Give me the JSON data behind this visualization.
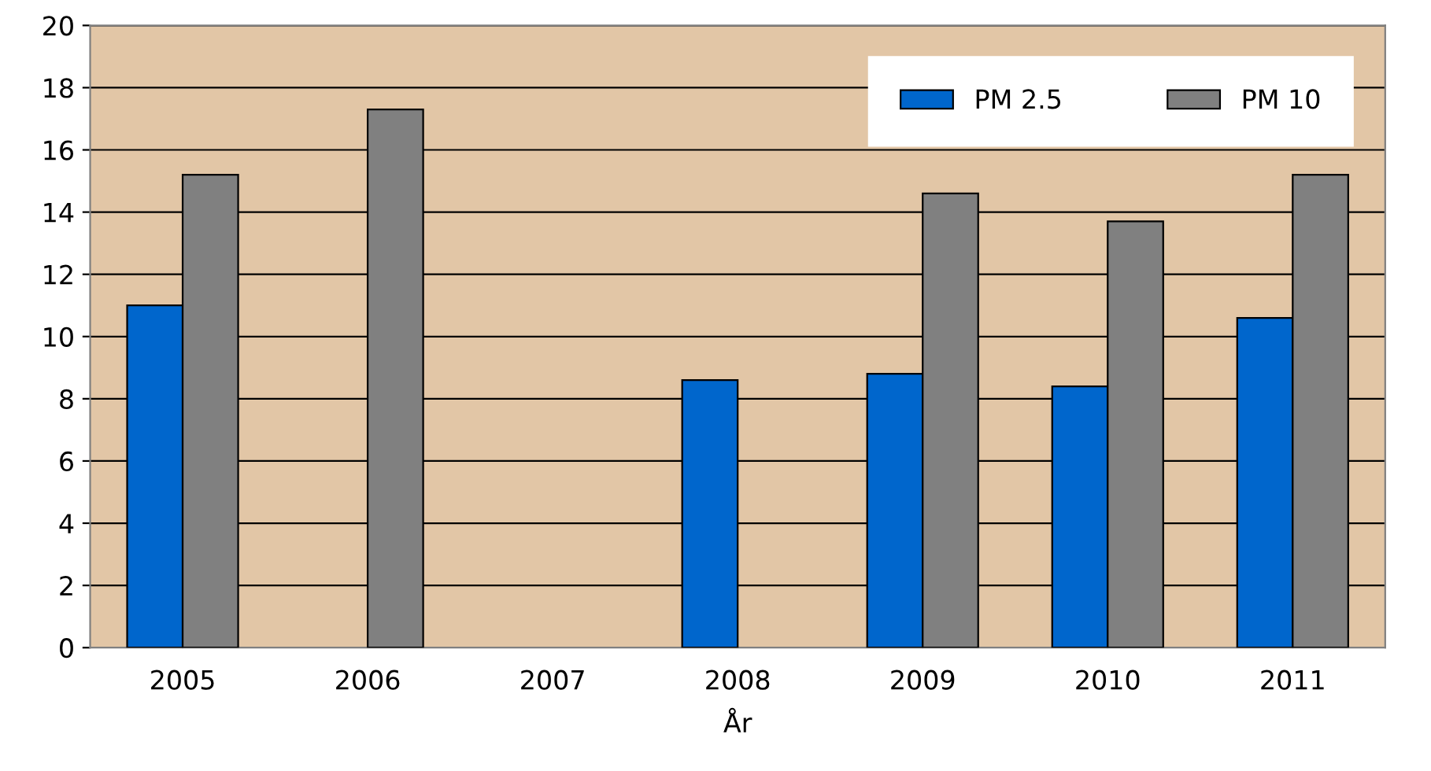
{
  "chart_data": {
    "type": "bar",
    "xlabel": "År",
    "categories": [
      "2005",
      "2006",
      "2007",
      "2008",
      "2009",
      "2010",
      "2011"
    ],
    "series": [
      {
        "name": "PM 2.5",
        "color": "#0066cc",
        "values": [
          11.0,
          null,
          null,
          8.6,
          8.8,
          8.4,
          10.6
        ]
      },
      {
        "name": "PM 10",
        "color": "#808080",
        "values": [
          15.2,
          17.3,
          null,
          null,
          14.6,
          13.7,
          15.2
        ]
      }
    ],
    "ylim": [
      0,
      20
    ],
    "yticks": [
      0,
      2,
      4,
      6,
      8,
      10,
      12,
      14,
      16,
      18,
      20
    ],
    "grid": "y",
    "legend": "top right"
  }
}
